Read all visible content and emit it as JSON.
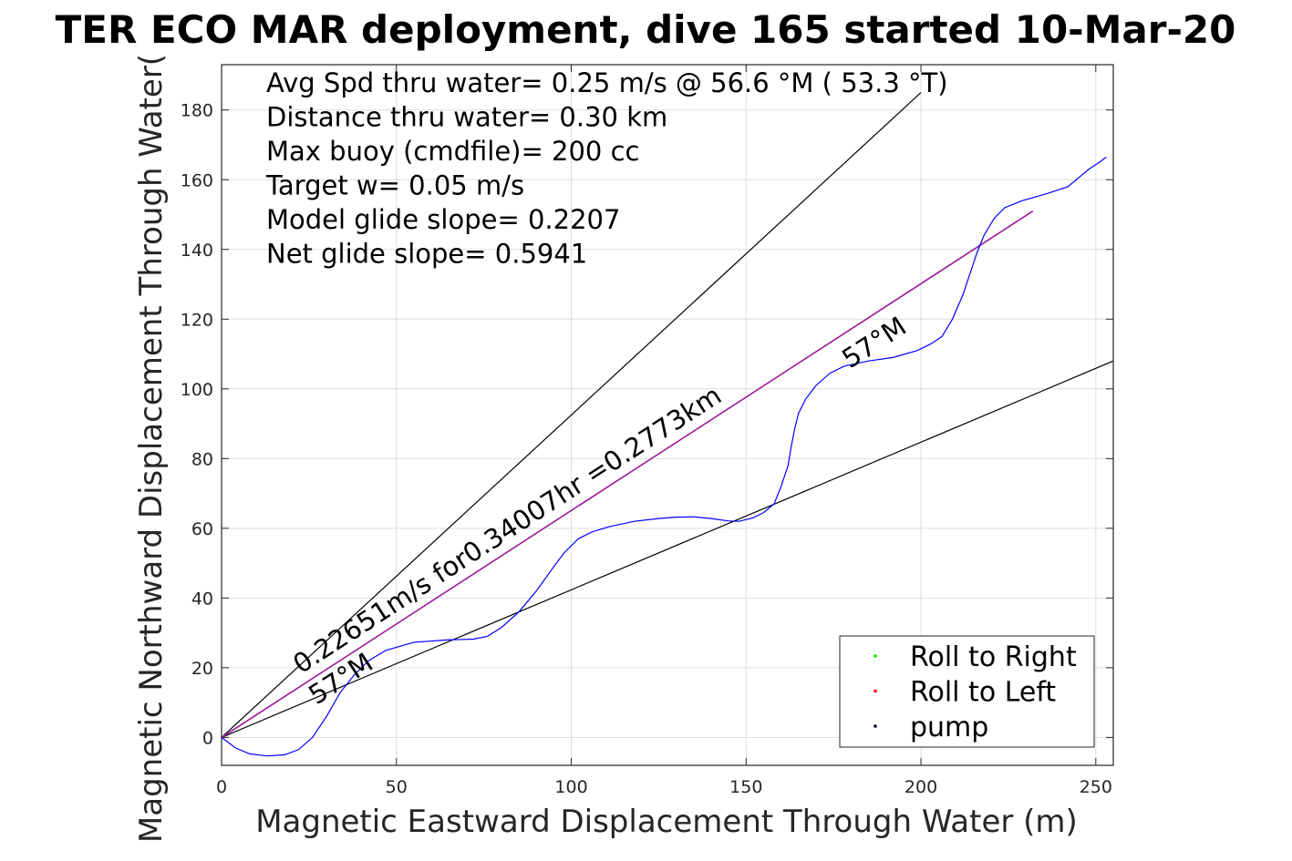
{
  "chart_data": {
    "type": "line",
    "title": "TER ECO MAR deployment, dive 165 started 10-Mar-20",
    "xlabel": "Magnetic Eastward Displacement Through Water (m)",
    "ylabel": "Magnetic Northward Displacement Through Water(",
    "xlim": [
      0,
      255
    ],
    "ylim": [
      -8,
      193
    ],
    "xticks": [
      0,
      50,
      100,
      150,
      200,
      250
    ],
    "yticks": [
      0,
      20,
      40,
      60,
      80,
      100,
      120,
      140,
      160,
      180
    ],
    "grid": true,
    "annotations": [
      "Avg Spd thru water=  0.25 m/s @  56.6 °M ( 53.3 °T)",
      "Distance thru water=  0.30 km",
      "Max buoy (cmdfile)= 200 cc",
      "Target w= 0.05 m/s",
      "Model glide slope= 0.2207",
      "Net glide slope= 0.5941"
    ],
    "rotated_labels": {
      "vector_label": "0.22651m/s for0.34007hr =0.2773km",
      "heading_label_start": "57°M",
      "heading_label_end": "57°M"
    },
    "legend": {
      "position": "bottom-right",
      "entries": [
        {
          "label": "Roll to Right",
          "color": "#00ee00"
        },
        {
          "label": "Roll to Left",
          "color": "#ff0000"
        },
        {
          "label": "pump",
          "color": "#000033"
        }
      ]
    },
    "reference_lines": [
      {
        "name": "envelope-upper",
        "color": "#000000",
        "points": [
          [
            0,
            0
          ],
          [
            200,
            185
          ]
        ]
      },
      {
        "name": "envelope-lower",
        "color": "#000000",
        "points": [
          [
            0,
            0
          ],
          [
            255,
            108
          ]
        ]
      },
      {
        "name": "net-vector",
        "color": "#9b1b9b",
        "points": [
          [
            0,
            0
          ],
          [
            232,
            151
          ]
        ]
      }
    ],
    "series": [
      {
        "name": "track",
        "color": "#0000ff",
        "points": [
          [
            0,
            0
          ],
          [
            4,
            -3
          ],
          [
            8,
            -4.7
          ],
          [
            13,
            -5.3
          ],
          [
            18,
            -5
          ],
          [
            22,
            -3.5
          ],
          [
            26,
            0
          ],
          [
            30,
            6
          ],
          [
            34,
            13
          ],
          [
            38,
            18
          ],
          [
            42,
            22
          ],
          [
            47,
            25
          ],
          [
            55,
            27.3
          ],
          [
            65,
            28
          ],
          [
            72,
            28.2
          ],
          [
            76,
            29
          ],
          [
            80,
            31.5
          ],
          [
            85,
            36
          ],
          [
            90,
            42
          ],
          [
            95,
            49
          ],
          [
            98,
            53
          ],
          [
            102,
            57
          ],
          [
            106,
            59
          ],
          [
            111,
            60.5
          ],
          [
            118,
            62
          ],
          [
            125,
            62.8
          ],
          [
            130,
            63.2
          ],
          [
            135,
            63.3
          ],
          [
            140,
            62.8
          ],
          [
            145,
            62.1
          ],
          [
            148,
            62
          ],
          [
            152,
            63
          ],
          [
            155,
            64.5
          ],
          [
            158,
            67
          ],
          [
            160,
            72
          ],
          [
            162,
            78
          ],
          [
            163,
            84
          ],
          [
            164,
            89
          ],
          [
            165,
            93
          ],
          [
            167,
            97
          ],
          [
            170,
            101
          ],
          [
            174,
            104.5
          ],
          [
            178,
            106.5
          ],
          [
            185,
            108
          ],
          [
            192,
            109
          ],
          [
            199,
            111
          ],
          [
            203,
            113
          ],
          [
            206,
            115
          ],
          [
            209,
            120
          ],
          [
            212,
            127
          ],
          [
            214,
            133
          ],
          [
            216,
            139
          ],
          [
            218,
            144
          ],
          [
            221,
            149
          ],
          [
            224,
            152
          ],
          [
            229,
            154
          ],
          [
            236,
            156
          ],
          [
            242,
            158
          ],
          [
            248,
            163
          ],
          [
            251,
            165
          ],
          [
            253,
            166.5
          ]
        ]
      }
    ]
  }
}
